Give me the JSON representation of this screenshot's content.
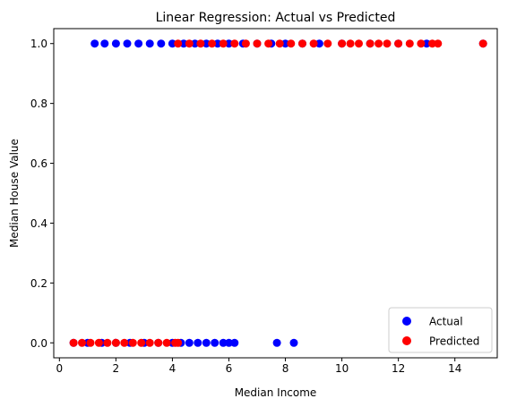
{
  "chart_data": {
    "type": "scatter",
    "title": "Linear Regression: Actual vs Predicted",
    "xlabel": "Median Income",
    "ylabel": "Median House Value",
    "xlim": [
      -0.2,
      15.5
    ],
    "ylim": [
      -0.05,
      1.05
    ],
    "x_ticks": [
      0,
      2,
      4,
      6,
      8,
      10,
      12,
      14
    ],
    "y_ticks": [
      0.0,
      0.2,
      0.4,
      0.6,
      0.8,
      1.0
    ],
    "x_tick_labels": [
      "0",
      "2",
      "4",
      "6",
      "8",
      "10",
      "12",
      "14"
    ],
    "y_tick_labels": [
      "0.0",
      "0.2",
      "0.4",
      "0.6",
      "0.8",
      "1.0"
    ],
    "grid": false,
    "legend_position": "lower-right",
    "series": [
      {
        "name": "Actual",
        "color": "#0000ff",
        "points": [
          {
            "x": 0.5,
            "y": 0
          },
          {
            "x": 1.0,
            "y": 0
          },
          {
            "x": 1.5,
            "y": 0
          },
          {
            "x": 2.0,
            "y": 0
          },
          {
            "x": 2.5,
            "y": 0
          },
          {
            "x": 3.0,
            "y": 0
          },
          {
            "x": 3.5,
            "y": 0
          },
          {
            "x": 4.0,
            "y": 0
          },
          {
            "x": 4.3,
            "y": 0
          },
          {
            "x": 4.6,
            "y": 0
          },
          {
            "x": 4.9,
            "y": 0
          },
          {
            "x": 5.2,
            "y": 0
          },
          {
            "x": 5.5,
            "y": 0
          },
          {
            "x": 5.8,
            "y": 0
          },
          {
            "x": 6.0,
            "y": 0
          },
          {
            "x": 6.2,
            "y": 0
          },
          {
            "x": 7.7,
            "y": 0
          },
          {
            "x": 8.3,
            "y": 0
          },
          {
            "x": 1.25,
            "y": 1
          },
          {
            "x": 1.6,
            "y": 1
          },
          {
            "x": 2.0,
            "y": 1
          },
          {
            "x": 2.4,
            "y": 1
          },
          {
            "x": 2.8,
            "y": 1
          },
          {
            "x": 3.2,
            "y": 1
          },
          {
            "x": 3.6,
            "y": 1
          },
          {
            "x": 4.0,
            "y": 1
          },
          {
            "x": 4.4,
            "y": 1
          },
          {
            "x": 4.8,
            "y": 1
          },
          {
            "x": 5.2,
            "y": 1
          },
          {
            "x": 5.6,
            "y": 1
          },
          {
            "x": 6.0,
            "y": 1
          },
          {
            "x": 6.5,
            "y": 1
          },
          {
            "x": 7.0,
            "y": 1
          },
          {
            "x": 7.5,
            "y": 1
          },
          {
            "x": 8.0,
            "y": 1
          },
          {
            "x": 8.6,
            "y": 1
          },
          {
            "x": 9.2,
            "y": 1
          },
          {
            "x": 10.0,
            "y": 1
          },
          {
            "x": 11.0,
            "y": 1
          },
          {
            "x": 12.0,
            "y": 1
          },
          {
            "x": 13.0,
            "y": 1
          },
          {
            "x": 15.0,
            "y": 1
          }
        ]
      },
      {
        "name": "Predicted",
        "color": "#ff0000",
        "points": [
          {
            "x": 0.5,
            "y": 0
          },
          {
            "x": 0.8,
            "y": 0
          },
          {
            "x": 1.1,
            "y": 0
          },
          {
            "x": 1.4,
            "y": 0
          },
          {
            "x": 1.7,
            "y": 0
          },
          {
            "x": 2.0,
            "y": 0
          },
          {
            "x": 2.3,
            "y": 0
          },
          {
            "x": 2.6,
            "y": 0
          },
          {
            "x": 2.9,
            "y": 0
          },
          {
            "x": 3.2,
            "y": 0
          },
          {
            "x": 3.5,
            "y": 0
          },
          {
            "x": 3.8,
            "y": 0
          },
          {
            "x": 4.1,
            "y": 0
          },
          {
            "x": 4.2,
            "y": 0
          },
          {
            "x": 4.2,
            "y": 1
          },
          {
            "x": 4.6,
            "y": 1
          },
          {
            "x": 5.0,
            "y": 1
          },
          {
            "x": 5.4,
            "y": 1
          },
          {
            "x": 5.8,
            "y": 1
          },
          {
            "x": 6.2,
            "y": 1
          },
          {
            "x": 6.6,
            "y": 1
          },
          {
            "x": 7.0,
            "y": 1
          },
          {
            "x": 7.4,
            "y": 1
          },
          {
            "x": 7.8,
            "y": 1
          },
          {
            "x": 8.2,
            "y": 1
          },
          {
            "x": 8.6,
            "y": 1
          },
          {
            "x": 9.0,
            "y": 1
          },
          {
            "x": 9.5,
            "y": 1
          },
          {
            "x": 10.0,
            "y": 1
          },
          {
            "x": 10.3,
            "y": 1
          },
          {
            "x": 10.6,
            "y": 1
          },
          {
            "x": 11.0,
            "y": 1
          },
          {
            "x": 11.3,
            "y": 1
          },
          {
            "x": 11.6,
            "y": 1
          },
          {
            "x": 12.0,
            "y": 1
          },
          {
            "x": 12.4,
            "y": 1
          },
          {
            "x": 12.8,
            "y": 1
          },
          {
            "x": 13.2,
            "y": 1
          },
          {
            "x": 13.4,
            "y": 1
          },
          {
            "x": 15.0,
            "y": 1
          }
        ]
      }
    ]
  }
}
